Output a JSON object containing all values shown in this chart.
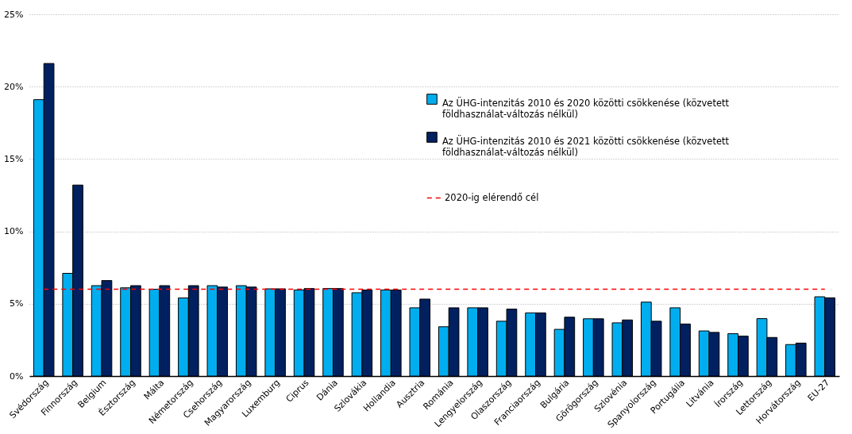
{
  "chart_data": {
    "type": "bar",
    "categories": [
      "Svédország",
      "Finnország",
      "Belgium",
      "Észtország",
      "Málta",
      "Németország",
      "Csehország",
      "Magyarország",
      "Luxemburg",
      "Ciprus",
      "Dánia",
      "Szlovákia",
      "Hollandia",
      "Ausztria",
      "Románia",
      "Lengyelország",
      "Olaszország",
      "Franciaország",
      "Bulgária",
      "Görögország",
      "Szlovénia",
      "Spanyolország",
      "Portugália",
      "Litvánia",
      "Írország",
      "Lettország",
      "Horvátország",
      "EU-27"
    ],
    "series": [
      {
        "name": "Az ÜHG-intenzitás 2010 és 2020 közötti csökkenése (közvetett földhasználat-változás nélkül)",
        "color": "#00aeef",
        "values": [
          19.1,
          7.1,
          6.25,
          6.1,
          6.0,
          5.4,
          6.25,
          6.25,
          6.03,
          5.95,
          6.05,
          5.76,
          5.95,
          4.72,
          3.41,
          4.72,
          3.79,
          4.37,
          3.23,
          3.96,
          3.68,
          5.11,
          4.72,
          3.12,
          2.93,
          3.97,
          2.18,
          5.48
        ]
      },
      {
        "name": "Az ÜHG-intenzitás 2010 és 2021 közötti csökkenése (közvetett földhasználat-változás nélkül)",
        "color": "#002060",
        "values": [
          21.6,
          13.2,
          6.6,
          6.25,
          6.25,
          6.25,
          6.15,
          6.15,
          6.03,
          6.05,
          6.05,
          5.95,
          5.95,
          5.32,
          4.72,
          4.72,
          4.63,
          4.37,
          4.07,
          3.96,
          3.88,
          3.79,
          3.6,
          3.02,
          2.76,
          2.67,
          2.28,
          5.41
        ]
      }
    ],
    "ylim": [
      0,
      25
    ],
    "yticks": [
      {
        "value": 0,
        "label": "0%"
      },
      {
        "value": 5,
        "label": "5%"
      },
      {
        "value": 10,
        "label": "10%"
      },
      {
        "value": 15,
        "label": "15%"
      },
      {
        "value": 20,
        "label": "20%"
      },
      {
        "value": 25,
        "label": "25%"
      }
    ],
    "ref_lines": [
      {
        "axis": "y",
        "value": 6,
        "label": "2020-ig elérendő cél",
        "color": "#ff0000",
        "line_style": "dashed"
      }
    ],
    "grid": "y",
    "legend": "top right"
  }
}
